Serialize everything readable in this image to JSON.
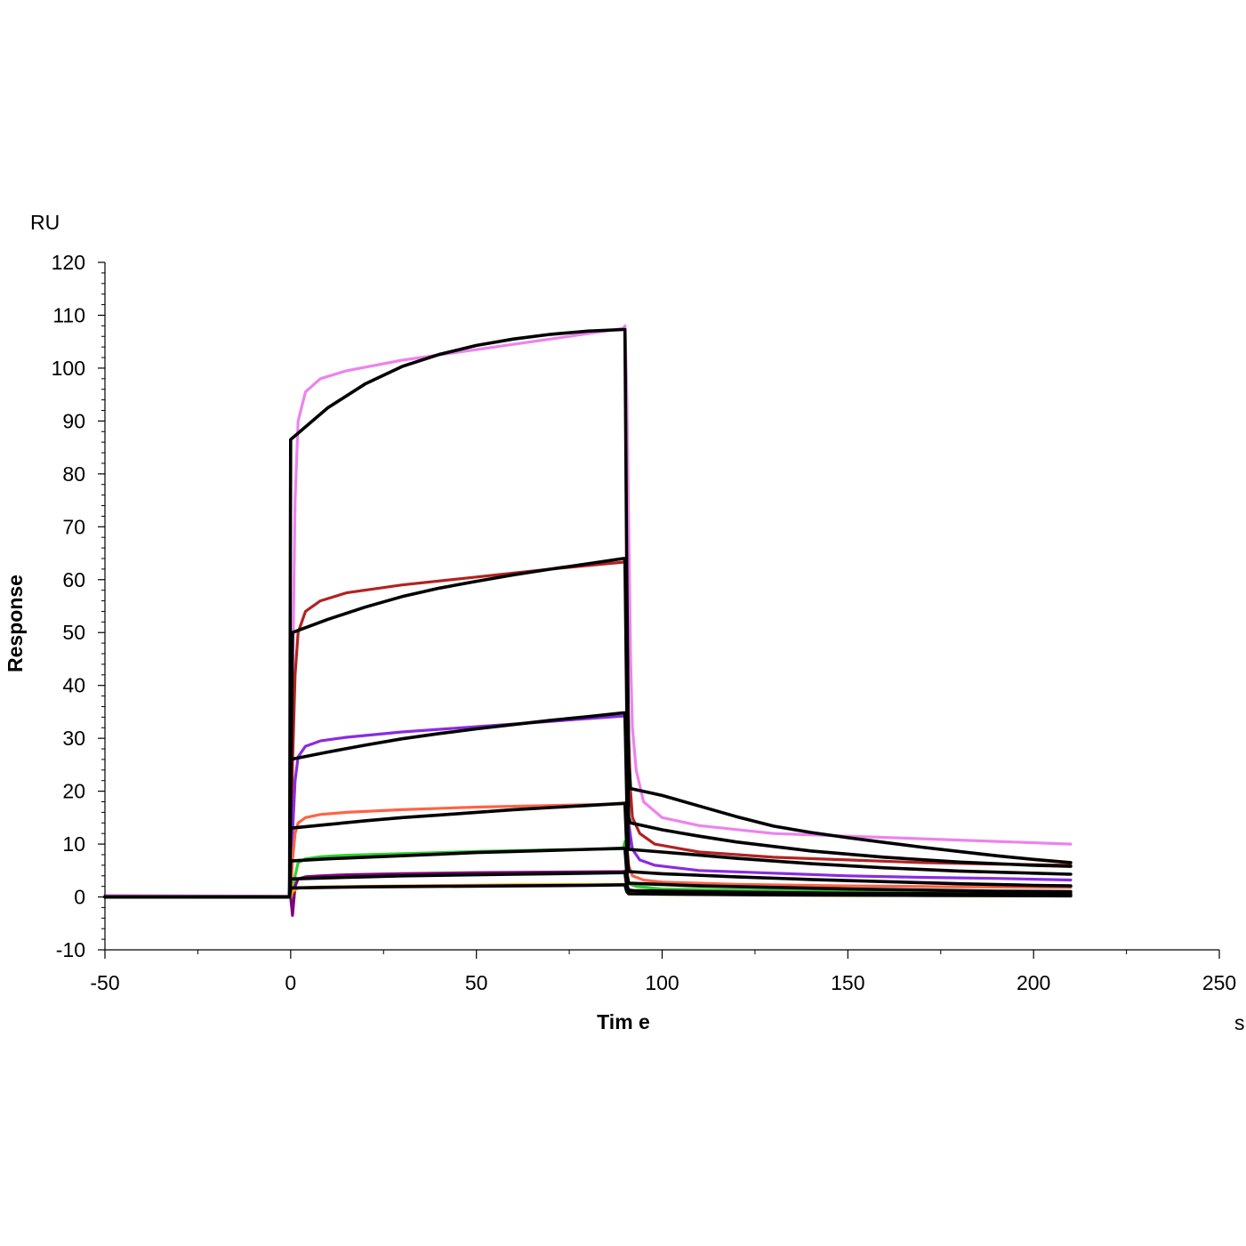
{
  "chart_data": {
    "type": "line",
    "title": "",
    "xlabel": "Tim e",
    "ylabel": "Response",
    "x_unit": "s",
    "y_unit": "RU",
    "xlim": [
      -50,
      250
    ],
    "ylim": [
      -10,
      120
    ],
    "x_ticks": [
      -50,
      0,
      50,
      100,
      150,
      200,
      250
    ],
    "y_ticks": [
      -10,
      0,
      10,
      20,
      30,
      40,
      50,
      60,
      70,
      80,
      90,
      100,
      110,
      120
    ],
    "grid": false,
    "legend": "none",
    "association_start": 0,
    "dissociation_start": 90,
    "end_time": 210,
    "series": [
      {
        "role": "measured",
        "color": "#ee82ee",
        "points": [
          [
            -50,
            0.3
          ],
          [
            -1,
            0.1
          ],
          [
            0,
            0
          ],
          [
            0.5,
            40
          ],
          [
            1.2,
            75
          ],
          [
            2,
            90
          ],
          [
            4,
            95.5
          ],
          [
            8,
            98
          ],
          [
            15,
            99.5
          ],
          [
            30,
            101.5
          ],
          [
            50,
            103.5
          ],
          [
            70,
            105.5
          ],
          [
            89.5,
            107.5
          ],
          [
            90,
            108
          ],
          [
            90.5,
            95
          ],
          [
            91,
            70
          ],
          [
            91.5,
            45
          ],
          [
            92,
            32
          ],
          [
            93,
            24
          ],
          [
            95,
            18
          ],
          [
            100,
            15
          ],
          [
            110,
            13.5
          ],
          [
            130,
            12
          ],
          [
            150,
            11.5
          ],
          [
            170,
            11
          ],
          [
            190,
            10.5
          ],
          [
            210,
            10
          ]
        ]
      },
      {
        "role": "measured",
        "color": "#b22222",
        "points": [
          [
            -50,
            0
          ],
          [
            0,
            0
          ],
          [
            0.5,
            25
          ],
          [
            1.2,
            42
          ],
          [
            2,
            50
          ],
          [
            4,
            54
          ],
          [
            8,
            56
          ],
          [
            15,
            57.5
          ],
          [
            30,
            59
          ],
          [
            50,
            60.5
          ],
          [
            70,
            62
          ],
          [
            89.5,
            63.3
          ],
          [
            90,
            63.5
          ],
          [
            90.5,
            50
          ],
          [
            91,
            30
          ],
          [
            91.5,
            20
          ],
          [
            92,
            15
          ],
          [
            94,
            12
          ],
          [
            98,
            10
          ],
          [
            110,
            8.5
          ],
          [
            130,
            7.5
          ],
          [
            150,
            7
          ],
          [
            170,
            6.5
          ],
          [
            190,
            6.2
          ],
          [
            210,
            6
          ]
        ]
      },
      {
        "role": "measured",
        "color": "#8a2be2",
        "points": [
          [
            -50,
            0
          ],
          [
            0,
            0
          ],
          [
            0.5,
            12
          ],
          [
            1.2,
            22
          ],
          [
            2,
            26.5
          ],
          [
            4,
            28.5
          ],
          [
            8,
            29.5
          ],
          [
            15,
            30.2
          ],
          [
            30,
            31.2
          ],
          [
            50,
            32.2
          ],
          [
            70,
            33.2
          ],
          [
            89.5,
            34.2
          ],
          [
            90,
            34.5
          ],
          [
            90.5,
            25
          ],
          [
            91,
            14
          ],
          [
            92,
            9
          ],
          [
            94,
            7
          ],
          [
            98,
            6
          ],
          [
            110,
            5
          ],
          [
            130,
            4.5
          ],
          [
            150,
            4
          ],
          [
            170,
            3.7
          ],
          [
            190,
            3.5
          ],
          [
            210,
            3.2
          ]
        ]
      },
      {
        "role": "measured",
        "color": "#ff6347",
        "points": [
          [
            -50,
            0
          ],
          [
            0,
            0
          ],
          [
            0.5,
            7
          ],
          [
            1.2,
            12
          ],
          [
            2,
            14
          ],
          [
            4,
            15
          ],
          [
            8,
            15.6
          ],
          [
            15,
            16
          ],
          [
            30,
            16.5
          ],
          [
            50,
            17
          ],
          [
            70,
            17.3
          ],
          [
            89.5,
            17.6
          ],
          [
            90,
            17.8
          ],
          [
            90.5,
            10
          ],
          [
            91,
            6
          ],
          [
            92,
            4
          ],
          [
            95,
            3.2
          ],
          [
            100,
            2.8
          ],
          [
            120,
            2.4
          ],
          [
            150,
            2.1
          ],
          [
            180,
            1.9
          ],
          [
            210,
            1.8
          ]
        ]
      },
      {
        "role": "measured",
        "color": "#32cd32",
        "points": [
          [
            -50,
            0
          ],
          [
            0,
            0
          ],
          [
            0.5,
            -1.5
          ],
          [
            1.2,
            4
          ],
          [
            2,
            6.5
          ],
          [
            4,
            7.2
          ],
          [
            8,
            7.6
          ],
          [
            15,
            7.9
          ],
          [
            30,
            8.2
          ],
          [
            50,
            8.6
          ],
          [
            70,
            8.9
          ],
          [
            89.5,
            9.1
          ],
          [
            90,
            10.5
          ],
          [
            90.5,
            5
          ],
          [
            91,
            2.5
          ],
          [
            93,
            2
          ],
          [
            100,
            1.5
          ],
          [
            130,
            1.2
          ],
          [
            170,
            1
          ],
          [
            210,
            0.9
          ]
        ]
      },
      {
        "role": "measured",
        "color": "#800080",
        "points": [
          [
            -50,
            0
          ],
          [
            0,
            0
          ],
          [
            0.5,
            -3.5
          ],
          [
            1.2,
            2
          ],
          [
            2,
            3.4
          ],
          [
            4,
            3.8
          ],
          [
            8,
            4
          ],
          [
            15,
            4.2
          ],
          [
            30,
            4.4
          ],
          [
            50,
            4.6
          ],
          [
            70,
            4.7
          ],
          [
            89.5,
            4.8
          ],
          [
            90,
            4.9
          ],
          [
            90.5,
            2.5
          ],
          [
            91,
            1.4
          ],
          [
            93,
            1.1
          ],
          [
            110,
            0.9
          ],
          [
            150,
            0.7
          ],
          [
            210,
            0.5
          ]
        ]
      },
      {
        "role": "measured",
        "color": "#ffa500",
        "points": [
          [
            -50,
            0
          ],
          [
            0,
            0
          ],
          [
            0.5,
            1
          ],
          [
            2,
            1.7
          ],
          [
            8,
            1.9
          ],
          [
            30,
            2.1
          ],
          [
            60,
            2.3
          ],
          [
            89.5,
            2.4
          ],
          [
            90,
            2.4
          ],
          [
            91,
            0.8
          ],
          [
            100,
            0.5
          ],
          [
            150,
            0.3
          ],
          [
            210,
            0.2
          ]
        ]
      },
      {
        "role": "fit",
        "color": "#000000",
        "points": [
          [
            -50,
            0
          ],
          [
            -0.3,
            0
          ],
          [
            0,
            86.5
          ],
          [
            5,
            89.5
          ],
          [
            10,
            92.5
          ],
          [
            20,
            97
          ],
          [
            30,
            100.3
          ],
          [
            40,
            102.6
          ],
          [
            50,
            104.3
          ],
          [
            60,
            105.5
          ],
          [
            70,
            106.4
          ],
          [
            80,
            107
          ],
          [
            89.5,
            107.3
          ],
          [
            90,
            107.3
          ],
          [
            90.5,
            60
          ],
          [
            91,
            25
          ],
          [
            91.5,
            20.5
          ],
          [
            100,
            19.2
          ],
          [
            110,
            17.2
          ],
          [
            120,
            15.2
          ],
          [
            130,
            13.4
          ],
          [
            140,
            12.2
          ],
          [
            150,
            11.2
          ],
          [
            160,
            10.3
          ],
          [
            170,
            9.4
          ],
          [
            180,
            8.6
          ],
          [
            190,
            7.8
          ],
          [
            200,
            7.1
          ],
          [
            210,
            6.5
          ]
        ]
      },
      {
        "role": "fit",
        "color": "#000000",
        "points": [
          [
            -50,
            0
          ],
          [
            -0.3,
            0
          ],
          [
            0.5,
            50
          ],
          [
            10,
            52.5
          ],
          [
            20,
            54.8
          ],
          [
            30,
            56.8
          ],
          [
            40,
            58.4
          ],
          [
            50,
            59.7
          ],
          [
            60,
            60.9
          ],
          [
            70,
            62
          ],
          [
            80,
            63
          ],
          [
            89.5,
            64
          ],
          [
            90,
            64
          ],
          [
            90.5,
            35
          ],
          [
            91,
            15
          ],
          [
            91.5,
            14
          ],
          [
            100,
            12.7
          ],
          [
            110,
            11.5
          ],
          [
            120,
            10.4
          ],
          [
            140,
            8.7
          ],
          [
            160,
            7.5
          ],
          [
            180,
            6.6
          ],
          [
            200,
            6
          ],
          [
            210,
            5.8
          ]
        ]
      },
      {
        "role": "fit",
        "color": "#000000",
        "points": [
          [
            -50,
            0
          ],
          [
            -0.3,
            0
          ],
          [
            0,
            26
          ],
          [
            10,
            27.4
          ],
          [
            20,
            28.7
          ],
          [
            30,
            29.9
          ],
          [
            40,
            30.9
          ],
          [
            50,
            31.8
          ],
          [
            60,
            32.6
          ],
          [
            70,
            33.4
          ],
          [
            80,
            34.1
          ],
          [
            89.5,
            34.8
          ],
          [
            90,
            34.8
          ],
          [
            90.5,
            18
          ],
          [
            91,
            9
          ],
          [
            100,
            8.5
          ],
          [
            120,
            7.3
          ],
          [
            140,
            6.3
          ],
          [
            160,
            5.5
          ],
          [
            180,
            4.9
          ],
          [
            200,
            4.5
          ],
          [
            210,
            4.3
          ]
        ]
      },
      {
        "role": "fit",
        "color": "#000000",
        "points": [
          [
            -50,
            0
          ],
          [
            -0.3,
            0
          ],
          [
            0,
            13
          ],
          [
            10,
            13.7
          ],
          [
            20,
            14.4
          ],
          [
            30,
            15
          ],
          [
            40,
            15.5
          ],
          [
            50,
            16
          ],
          [
            60,
            16.5
          ],
          [
            70,
            16.9
          ],
          [
            80,
            17.3
          ],
          [
            89.5,
            17.7
          ],
          [
            90,
            17.7
          ],
          [
            90.5,
            9
          ],
          [
            91,
            4.8
          ],
          [
            100,
            4.4
          ],
          [
            120,
            3.8
          ],
          [
            140,
            3.3
          ],
          [
            160,
            2.9
          ],
          [
            180,
            2.5
          ],
          [
            200,
            2.2
          ],
          [
            210,
            2.1
          ]
        ]
      },
      {
        "role": "fit",
        "color": "#000000",
        "points": [
          [
            -50,
            0
          ],
          [
            -0.3,
            0
          ],
          [
            0,
            6.8
          ],
          [
            10,
            7.2
          ],
          [
            20,
            7.5
          ],
          [
            30,
            7.8
          ],
          [
            40,
            8.1
          ],
          [
            50,
            8.4
          ],
          [
            60,
            8.6
          ],
          [
            70,
            8.8
          ],
          [
            80,
            9
          ],
          [
            89.5,
            9.2
          ],
          [
            90,
            9.2
          ],
          [
            90.5,
            4.5
          ],
          [
            91,
            2.6
          ],
          [
            110,
            2.1
          ],
          [
            130,
            1.8
          ],
          [
            150,
            1.5
          ],
          [
            170,
            1.3
          ],
          [
            190,
            1.1
          ],
          [
            210,
            1
          ]
        ]
      },
      {
        "role": "fit",
        "color": "#000000",
        "points": [
          [
            -50,
            0
          ],
          [
            -0.3,
            0
          ],
          [
            0,
            3.4
          ],
          [
            10,
            3.6
          ],
          [
            20,
            3.8
          ],
          [
            30,
            4
          ],
          [
            40,
            4.1
          ],
          [
            50,
            4.2
          ],
          [
            60,
            4.3
          ],
          [
            70,
            4.4
          ],
          [
            80,
            4.5
          ],
          [
            89.5,
            4.6
          ],
          [
            90,
            4.6
          ],
          [
            90.5,
            2
          ],
          [
            91,
            1.2
          ],
          [
            120,
            0.9
          ],
          [
            150,
            0.7
          ],
          [
            180,
            0.6
          ],
          [
            210,
            0.5
          ]
        ]
      },
      {
        "role": "fit",
        "color": "#000000",
        "points": [
          [
            -50,
            0
          ],
          [
            -0.3,
            0
          ],
          [
            0,
            1.7
          ],
          [
            20,
            1.9
          ],
          [
            40,
            2
          ],
          [
            60,
            2.1
          ],
          [
            80,
            2.2
          ],
          [
            89.5,
            2.3
          ],
          [
            90,
            2.3
          ],
          [
            90.5,
            1
          ],
          [
            91,
            0.6
          ],
          [
            130,
            0.4
          ],
          [
            170,
            0.3
          ],
          [
            210,
            0.2
          ]
        ]
      }
    ]
  }
}
